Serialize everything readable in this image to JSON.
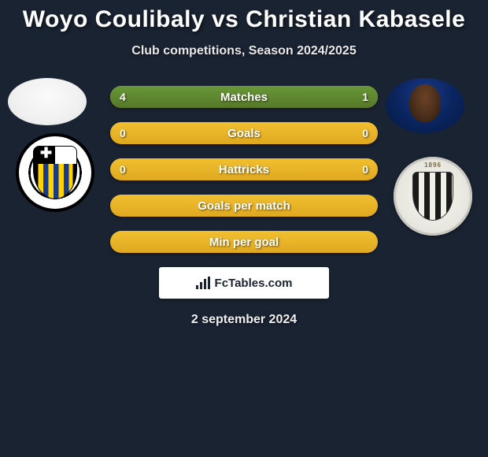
{
  "title": "Woyo Coulibaly vs Christian Kabasele",
  "subtitle": "Club competitions, Season 2024/2025",
  "date": "2 september 2024",
  "watermark": "FcTables.com",
  "colors": {
    "background": "#1a2332",
    "bar_base": "#e8b028",
    "bar_fill": "#5f8a2f",
    "text": "#ffffff"
  },
  "bars": [
    {
      "label": "Matches",
      "left": "4",
      "right": "1",
      "left_pct": 80,
      "right_pct": 20
    },
    {
      "label": "Goals",
      "left": "0",
      "right": "0",
      "left_pct": 0,
      "right_pct": 0
    },
    {
      "label": "Hattricks",
      "left": "0",
      "right": "0",
      "left_pct": 0,
      "right_pct": 0
    },
    {
      "label": "Goals per match",
      "left": "",
      "right": "",
      "left_pct": 0,
      "right_pct": 0
    },
    {
      "label": "Min per goal",
      "left": "",
      "right": "",
      "left_pct": 0,
      "right_pct": 0
    }
  ],
  "badge_right_year": "1896"
}
